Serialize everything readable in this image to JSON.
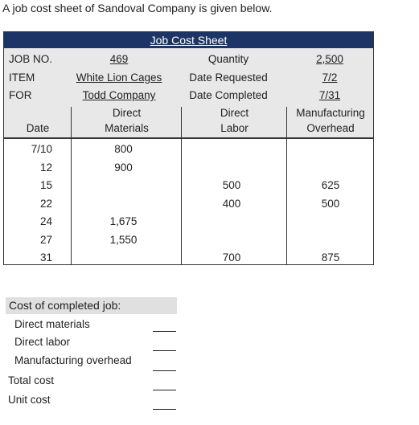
{
  "intro": "A job cost sheet of Sandoval Company is given below.",
  "sheet": {
    "title": "Job Cost Sheet",
    "job_no_label": "JOB NO.",
    "job_no": "469",
    "item_label": "ITEM",
    "item": "White Lion Cages",
    "for_label": "FOR",
    "for": "Todd Company",
    "quantity_label": "Quantity",
    "quantity": "2,500",
    "date_requested_label": "Date Requested",
    "date_requested": "7/2",
    "date_completed_label": "Date Completed",
    "date_completed": "7/31",
    "col_date": "Date",
    "col_dm_1": "Direct",
    "col_dm_2": "Materials",
    "col_dl_1": "Direct",
    "col_dl_2": "Labor",
    "col_mo_1": "Manufacturing",
    "col_mo_2": "Overhead",
    "rows": [
      {
        "date": "7/10",
        "dm": "800",
        "dl": "",
        "mo": ""
      },
      {
        "date": "12",
        "dm": "900",
        "dl": "",
        "mo": ""
      },
      {
        "date": "15",
        "dm": "",
        "dl": "500",
        "mo": "625"
      },
      {
        "date": "22",
        "dm": "",
        "dl": "400",
        "mo": "500"
      },
      {
        "date": "24",
        "dm": "1,675",
        "dl": "",
        "mo": ""
      },
      {
        "date": "27",
        "dm": "1,550",
        "dl": "",
        "mo": ""
      },
      {
        "date": "31",
        "dm": "",
        "dl": "700",
        "mo": "875"
      }
    ]
  },
  "summary": {
    "heading": "Cost of completed job:",
    "direct_materials": "Direct materials",
    "direct_labor": "Direct labor",
    "manufacturing_overhead": "Manufacturing overhead",
    "total_cost": "Total cost",
    "unit_cost": "Unit cost"
  }
}
